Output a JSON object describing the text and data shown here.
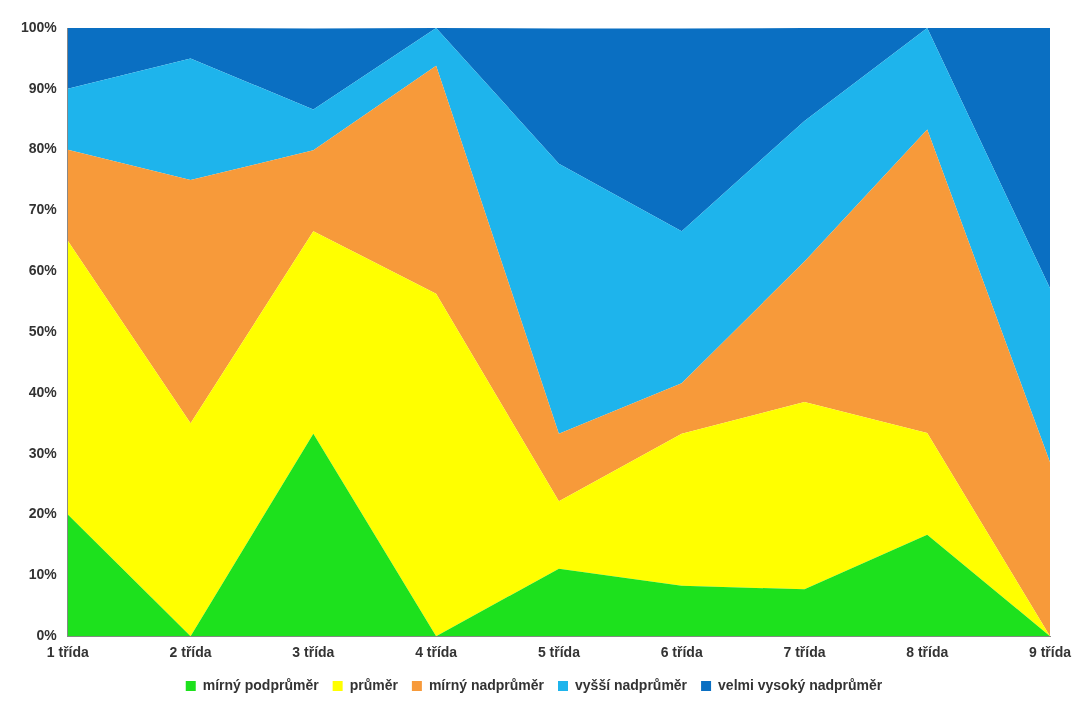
{
  "chart_data": {
    "type": "area",
    "stacked": true,
    "categories": [
      "1 třída",
      "2 třída",
      "3 třída",
      "4 třída",
      "5 třída",
      "6 třída",
      "7 třída",
      "8 třída",
      "9 třída"
    ],
    "series": [
      {
        "name": "mírný podprůměr",
        "color": "#1de11d",
        "values": [
          20,
          0,
          33.3,
          0,
          11.1,
          8.3,
          7.7,
          16.7,
          0
        ]
      },
      {
        "name": "průměr",
        "color": "#ffff00",
        "values": [
          45,
          35,
          33.3,
          56.3,
          11.1,
          25,
          30.8,
          16.7,
          0
        ]
      },
      {
        "name": "mírný nadprůměr",
        "color": "#f79a3a",
        "values": [
          15,
          40,
          13.3,
          37.5,
          11.1,
          8.3,
          23.1,
          49.9,
          28.6
        ]
      },
      {
        "name": "vyšší nadprůměr",
        "color": "#1eb4ec",
        "values": [
          10,
          20,
          6.7,
          6.2,
          44.4,
          25,
          23.1,
          16.7,
          28.6
        ]
      },
      {
        "name": "velmi vysoký nadprůměr",
        "color": "#0a6fc2",
        "values": [
          10,
          5,
          13.3,
          0,
          22.2,
          33.3,
          15.3,
          0,
          42.8
        ]
      }
    ],
    "ylim": [
      0,
      100
    ],
    "yticks": [
      {
        "value": 0,
        "label": "0%"
      },
      {
        "value": 10,
        "label": "10%"
      },
      {
        "value": 20,
        "label": "20%"
      },
      {
        "value": 30,
        "label": "30%"
      },
      {
        "value": 40,
        "label": "40%"
      },
      {
        "value": 50,
        "label": "50%"
      },
      {
        "value": 60,
        "label": "60%"
      },
      {
        "value": 70,
        "label": "70%"
      },
      {
        "value": 80,
        "label": "80%"
      },
      {
        "value": 90,
        "label": "90%"
      },
      {
        "value": 100,
        "label": "100%"
      }
    ],
    "grid": false,
    "legend": "bottom",
    "marker": "none"
  }
}
